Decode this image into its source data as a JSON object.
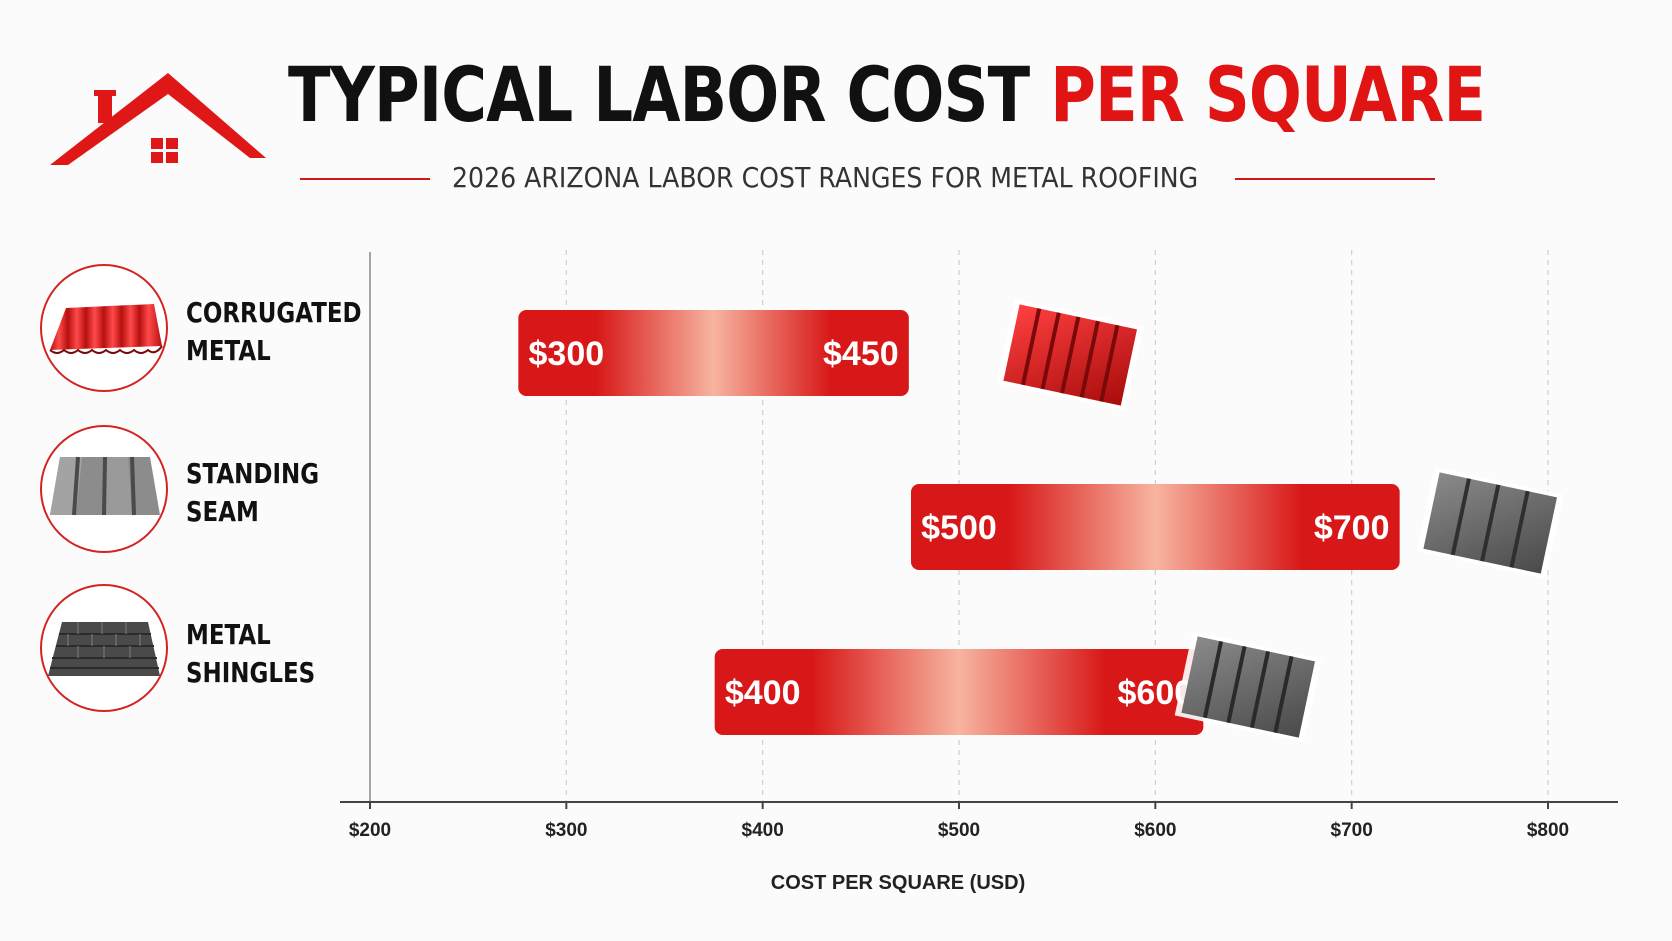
{
  "header": {
    "title_main": "TYPICAL LABOR COST",
    "title_accent": "PER SQUARE",
    "subtitle": "2026 ARIZONA LABOR COST RANGES FOR METAL ROOFING"
  },
  "icons": {
    "logo": "house-roof-icon",
    "rows": [
      "corrugated-metal-icon",
      "standing-seam-icon",
      "metal-shingles-icon"
    ]
  },
  "categories": [
    {
      "label": "CORRUGATED\nMETAL"
    },
    {
      "label": "STANDING\nSEAM"
    },
    {
      "label": "METAL\nSHINGLES"
    }
  ],
  "colors": {
    "accent": "#e11414",
    "bar_dark": "#d81818",
    "bar_light": "#f7b4a0",
    "gray_panel": "#5a5a5a"
  },
  "chart_data": {
    "type": "bar",
    "orientation": "horizontal-range",
    "categories": [
      "CORRUGATED METAL",
      "STANDING SEAM",
      "METAL SHINGLES"
    ],
    "series": [
      {
        "low": [
          300,
          500,
          400
        ],
        "high": [
          450,
          700,
          600
        ]
      }
    ],
    "value_labels": {
      "low": [
        "$300",
        "$500",
        "$400"
      ],
      "high": [
        "$450",
        "$700",
        "$600"
      ]
    },
    "xlabel": "COST PER SQUARE (USD)",
    "ylabel": "",
    "xlim": [
      200,
      800
    ],
    "xticks": [
      200,
      300,
      400,
      500,
      600,
      700,
      800
    ],
    "xtick_labels": [
      "$200",
      "$300",
      "$400",
      "$500",
      "$600",
      "$700",
      "$800"
    ],
    "grid": "vertical dashed"
  }
}
